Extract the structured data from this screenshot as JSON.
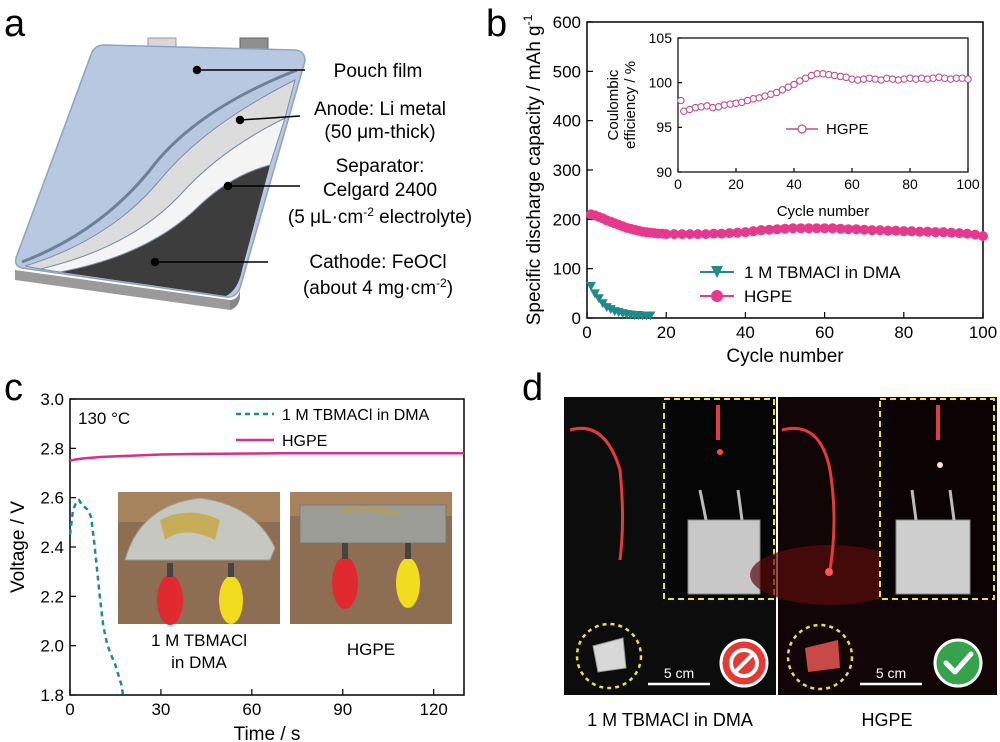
{
  "panels": {
    "a": {
      "letter": "a",
      "labels": {
        "pouch": "Pouch film",
        "anode_1": "Anode: Li metal",
        "anode_2": "(50 μm-thick)",
        "sep_1": "Separator:",
        "sep_2": "Celgard 2400",
        "sep_3_pre": "(5 μL·cm",
        "sep_3_sup": "-2",
        "sep_3_post": " electrolyte)",
        "cath_1": "Cathode: FeOCl",
        "cath_2_pre": "(about 4 mg·cm",
        "cath_2_sup": "-2",
        "cath_2_post": ")"
      },
      "colors": {
        "pouch": "#b7c8e0",
        "anode": "#eeeeee",
        "separator": "#dcdcdc",
        "cathode": "#3d3d3d",
        "tab": "#c9c9c9"
      }
    },
    "b": {
      "letter": "b"
    },
    "c": {
      "letter": "c",
      "temp_label": "130 °C",
      "photo_captions": {
        "left_1": "1 M TBMACl",
        "left_2": "in DMA",
        "right": "HGPE"
      }
    },
    "d": {
      "letter": "d",
      "scale_label_left": "5 cm",
      "scale_label_right": "5 cm",
      "caption_left": "1 M TBMACl in DMA",
      "caption_right": "HGPE",
      "icons": {
        "left": "prohibited-icon",
        "right": "check-icon"
      },
      "colors": {
        "fail": "#e53935",
        "pass": "#35a34b",
        "dash": "#e8e04a"
      }
    }
  },
  "chart_data": [
    {
      "id": "b-main",
      "type": "scatter",
      "xlabel": "Cycle number",
      "ylabel": "Specific discharge capacity / mAh g",
      "ylabel_sup": "-1",
      "xlim": [
        0,
        100
      ],
      "ylim": [
        0,
        600
      ],
      "xticks": [
        0,
        20,
        40,
        60,
        80,
        100
      ],
      "yticks": [
        0,
        100,
        200,
        300,
        400,
        500,
        600
      ],
      "legend_position": "lower-center",
      "series": [
        {
          "name": "1 M TBMACl in DMA",
          "marker": "triangle-down",
          "color": "#1f8a8a",
          "x": [
            1,
            2,
            3,
            4,
            5,
            6,
            7,
            8,
            9,
            10,
            11,
            12,
            13,
            14,
            15,
            16
          ],
          "y": [
            65,
            50,
            40,
            30,
            22,
            18,
            14,
            12,
            10,
            8,
            7,
            6,
            6,
            5,
            5,
            5
          ]
        },
        {
          "name": "HGPE",
          "marker": "circle",
          "color": "#e6388c",
          "x": [
            1,
            2,
            3,
            4,
            5,
            6,
            7,
            8,
            9,
            10,
            11,
            12,
            13,
            14,
            15,
            16,
            17,
            18,
            19,
            20,
            22,
            24,
            26,
            28,
            30,
            32,
            34,
            36,
            38,
            40,
            42,
            44,
            46,
            48,
            50,
            52,
            54,
            56,
            58,
            60,
            62,
            64,
            66,
            68,
            70,
            72,
            74,
            76,
            78,
            80,
            82,
            84,
            86,
            88,
            90,
            92,
            94,
            96,
            98,
            100
          ],
          "y": [
            210,
            208,
            205,
            202,
            198,
            195,
            192,
            189,
            186,
            183,
            181,
            179,
            177,
            175,
            174,
            173,
            172,
            171,
            171,
            170,
            170,
            170,
            170,
            170,
            170,
            171,
            171,
            172,
            173,
            174,
            176,
            178,
            179,
            180,
            181,
            182,
            182,
            182,
            182,
            182,
            182,
            181,
            180,
            180,
            179,
            178,
            178,
            177,
            177,
            176,
            176,
            175,
            175,
            174,
            174,
            173,
            172,
            171,
            169,
            166
          ]
        }
      ]
    },
    {
      "id": "b-inset",
      "type": "scatter",
      "xlabel": "Cycle number",
      "ylabel_1": "Coulombic",
      "ylabel_2": "efficiency / %",
      "xlim": [
        0,
        100
      ],
      "ylim": [
        90,
        105
      ],
      "xticks": [
        0,
        20,
        40,
        60,
        80,
        100
      ],
      "yticks": [
        90,
        95,
        100,
        105
      ],
      "legend_position": "center",
      "series": [
        {
          "name": "HGPE",
          "marker": "open-circle",
          "color": "#c0508c",
          "x": [
            1,
            2,
            4,
            6,
            8,
            10,
            12,
            14,
            16,
            18,
            20,
            22,
            24,
            26,
            28,
            30,
            32,
            34,
            36,
            38,
            40,
            42,
            44,
            46,
            48,
            50,
            52,
            54,
            56,
            58,
            60,
            62,
            64,
            66,
            68,
            70,
            72,
            74,
            76,
            78,
            80,
            82,
            84,
            86,
            88,
            90,
            92,
            94,
            96,
            98,
            100
          ],
          "y": [
            98,
            96.8,
            97,
            97.2,
            97.3,
            97.4,
            97.2,
            97.3,
            97.5,
            97.6,
            97.7,
            97.8,
            98,
            98.2,
            98.3,
            98.5,
            98.7,
            98.9,
            99.2,
            99.5,
            99.8,
            100.2,
            100.5,
            100.8,
            101,
            101,
            100.9,
            100.8,
            100.7,
            100.6,
            100.4,
            100.3,
            100.4,
            100.5,
            100.4,
            100.3,
            100.5,
            100.4,
            100.3,
            100.4,
            100.5,
            100.4,
            100.5,
            100.4,
            100.5,
            100.6,
            100.5,
            100.4,
            100.5,
            100.5,
            100.4
          ]
        }
      ]
    },
    {
      "id": "c-main",
      "type": "line",
      "xlabel": "Time / s",
      "ylabel": "Voltage / V",
      "xlim": [
        0,
        130
      ],
      "ylim": [
        1.8,
        3.0
      ],
      "xticks": [
        0,
        30,
        60,
        90,
        120
      ],
      "yticks": [
        1.8,
        2.0,
        2.2,
        2.4,
        2.6,
        2.8,
        3.0
      ],
      "legend_position": "top-right",
      "series": [
        {
          "name": "1 M TBMACl in DMA",
          "style": "dashed",
          "color": "#1f8a8a",
          "x": [
            0,
            1,
            2,
            3,
            4,
            5,
            6,
            7,
            8,
            9,
            10,
            11,
            12,
            13,
            14,
            15,
            16,
            17,
            17.5
          ],
          "y": [
            2.45,
            2.55,
            2.58,
            2.59,
            2.57,
            2.56,
            2.55,
            2.52,
            2.42,
            2.3,
            2.18,
            2.08,
            2.02,
            1.98,
            1.95,
            1.92,
            1.88,
            1.84,
            1.8
          ]
        },
        {
          "name": "HGPE",
          "style": "solid",
          "color": "#d6308a",
          "x": [
            0,
            2,
            5,
            10,
            20,
            30,
            40,
            50,
            60,
            70,
            80,
            90,
            100,
            110,
            120,
            130
          ],
          "y": [
            2.75,
            2.755,
            2.76,
            2.765,
            2.77,
            2.775,
            2.777,
            2.778,
            2.779,
            2.78,
            2.78,
            2.78,
            2.78,
            2.78,
            2.78,
            2.78
          ]
        }
      ]
    }
  ]
}
